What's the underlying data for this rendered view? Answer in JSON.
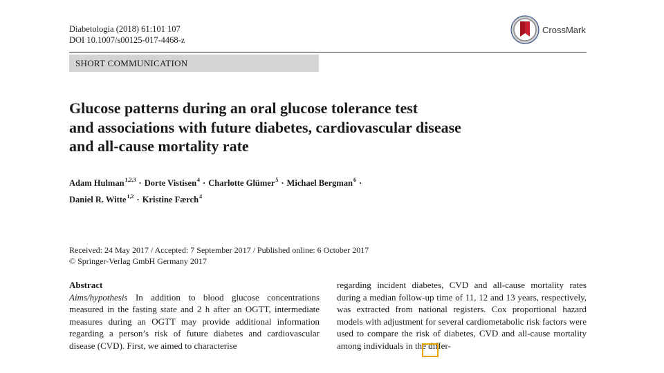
{
  "journal": {
    "citation": "Diabetologia (2018) 61:101  107",
    "doi": "DOI 10.1007/s00125-017-4468-z"
  },
  "crossmark": {
    "label": "CrossMark"
  },
  "section": {
    "label": "SHORT COMMUNICATION"
  },
  "title": {
    "line1": "Glucose patterns during an oral glucose tolerance test",
    "line2": "and associations with future diabetes, cardiovascular disease",
    "line3": "and all-cause mortality rate"
  },
  "authors": [
    {
      "name": "Adam Hulman",
      "affil": "1,2,3"
    },
    {
      "name": "Dorte Vistisen",
      "affil": "4"
    },
    {
      "name": "Charlotte Glümer",
      "affil": "5"
    },
    {
      "name": "Michael Bergman",
      "affil": "6"
    },
    {
      "name": "Daniel R. Witte",
      "affil": "1,2"
    },
    {
      "name": "Kristine Færch",
      "affil": "4"
    }
  ],
  "author_separator": "·",
  "dates": {
    "line1": "Received: 24 May 2017 / Accepted: 7 September 2017 / Published online: 6 October 2017",
    "copyright": "© Springer-Verlag GmbH Germany 2017"
  },
  "abstract": {
    "heading": "Abstract",
    "label": "Aims/hypothesis",
    "left_text": " In addition to blood glucose concentrations measured in the fasting state and 2 h after an OGTT, intermediate measures during an OGTT may provide additional information regarding a person’s risk of future diabetes and cardiovascular disease (CVD). First, we aimed to characterise",
    "right_text": "regarding incident diabetes, CVD and all-cause mortality rates during a median follow-up time of 11, 12 and 13 years, respectively, was extracted from national registers. Cox proportional hazard models with adjustment for several cardiometabolic risk factors were used to compare the risk of diabetes, CVD and all-cause mortality among individuals in the differ-"
  }
}
